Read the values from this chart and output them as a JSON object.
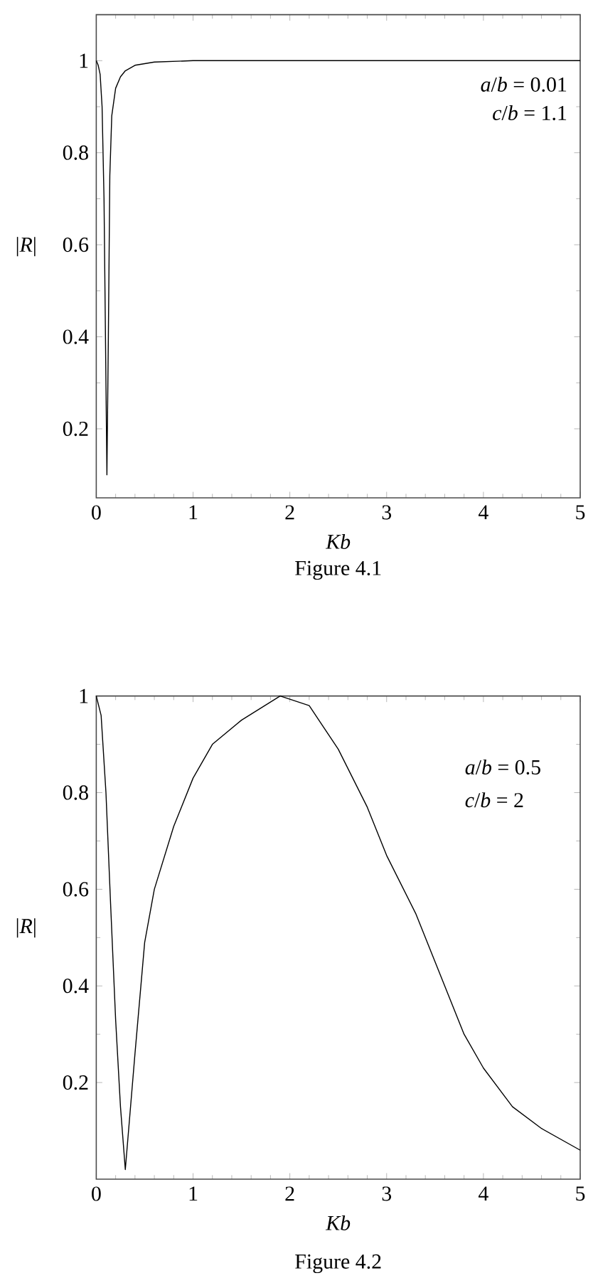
{
  "chart_data": [
    {
      "type": "line",
      "xlabel": "*Kb*",
      "ylabel": "|*R*|",
      "annotations": [
        "*a*/*b* = 0.01",
        "*c*/*b* = 1.1",
        "Figure 4.1"
      ],
      "x": [
        0,
        0.02,
        0.04,
        0.06,
        0.08,
        0.095,
        0.11,
        0.125,
        0.14,
        0.16,
        0.2,
        0.25,
        0.3,
        0.4,
        0.6,
        1,
        5
      ],
      "values": [
        1,
        0.99,
        0.97,
        0.9,
        0.7,
        0.4,
        0.1,
        0.4,
        0.75,
        0.88,
        0.94,
        0.965,
        0.978,
        0.99,
        0.997,
        1,
        1
      ],
      "color": "#000000",
      "marker": "none",
      "line_style": "solid",
      "xlim": [
        0,
        5
      ],
      "ylim": [
        0.05,
        1.1
      ],
      "xticks": [
        0,
        1,
        2,
        3,
        4,
        5
      ],
      "yticks": [
        0.2,
        0.4,
        0.6,
        0.8,
        1
      ]
    },
    {
      "type": "line",
      "xlabel": "*Kb*",
      "ylabel": "|*R*|",
      "annotations": [
        "*a*/*b* = 0.5",
        "*c*/*b* = 2",
        "Figure 4.2"
      ],
      "x": [
        0,
        0.05,
        0.1,
        0.15,
        0.2,
        0.25,
        0.3,
        0.4,
        0.5,
        0.6,
        0.8,
        1,
        1.2,
        1.5,
        1.9,
        2.2,
        2.5,
        2.8,
        3,
        3.3,
        3.5,
        3.8,
        4,
        4.3,
        4.6,
        5
      ],
      "values": [
        1,
        0.96,
        0.8,
        0.56,
        0.33,
        0.15,
        0.02,
        0.26,
        0.49,
        0.6,
        0.73,
        0.83,
        0.9,
        0.95,
        1,
        0.98,
        0.89,
        0.77,
        0.67,
        0.55,
        0.45,
        0.3,
        0.23,
        0.15,
        0.105,
        0.06
      ],
      "color": "#000000",
      "marker": "none",
      "line_style": "solid",
      "xlim": [
        0,
        5
      ],
      "ylim": [
        0,
        1
      ],
      "xticks": [
        0,
        1,
        2,
        3,
        4,
        5
      ],
      "yticks": [
        0.2,
        0.4,
        0.6,
        0.8,
        1
      ]
    }
  ]
}
